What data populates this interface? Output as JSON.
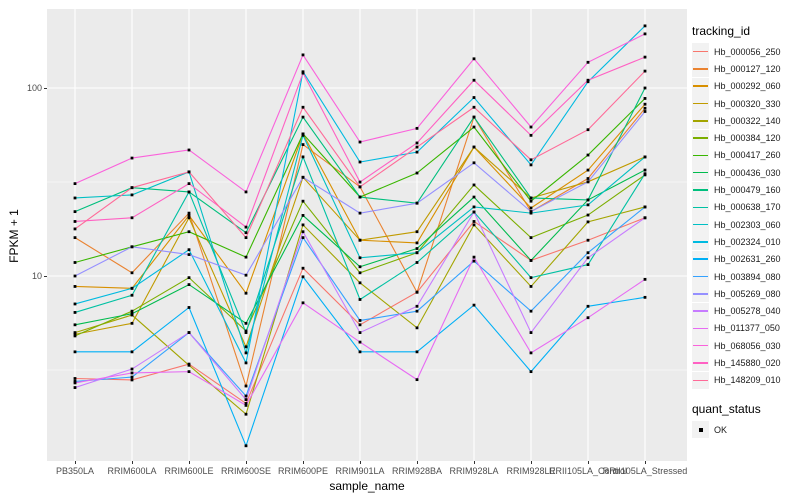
{
  "chart_data": {
    "type": "line",
    "title": "",
    "xlabel": "sample_name",
    "ylabel": "FPKM + 1",
    "y_scale": "log10",
    "y_ticks": [
      10,
      100
    ],
    "y_minor_gridlines": [
      3.1623,
      31.623
    ],
    "ylim": [
      1.04,
      263
    ],
    "grid": "on",
    "legend_position": "right",
    "marker": {
      "shape": "square",
      "color": "#000000",
      "meaning": "quant_status OK"
    },
    "categories": [
      "PB350LA",
      "RRIM600LA",
      "RRIM600LE",
      "RRIM600SE",
      "RRIM600PE",
      "RRIM901LA",
      "RRIM928BA",
      "RRIM928LA",
      "RRIM928LE",
      "RRII105LA_Control",
      "RRII105LA_Stressed"
    ],
    "series": [
      {
        "tracking_id": "Hb_000056_250",
        "color": "#F8766D",
        "values": [
          2.85,
          2.8,
          3.4,
          2.1,
          11,
          5.5,
          8.2,
          19.5,
          12.1,
          15.5,
          20.4
        ]
      },
      {
        "tracking_id": "Hb_000127_120",
        "color": "#EA8331",
        "values": [
          16,
          10.4,
          21.6,
          2.6,
          50,
          29.8,
          8.2,
          70,
          22,
          33,
          78
        ]
      },
      {
        "tracking_id": "Hb_000292_060",
        "color": "#D89000",
        "values": [
          8.8,
          8.6,
          21,
          8.1,
          57,
          15.5,
          15,
          48.5,
          23,
          36.6,
          82
        ]
      },
      {
        "tracking_id": "Hb_000320_330",
        "color": "#C09B00",
        "values": [
          4.9,
          5.6,
          20.4,
          4.2,
          33.5,
          15.5,
          17.2,
          48.5,
          26,
          31.7,
          43
        ]
      },
      {
        "tracking_id": "Hb_000322_140",
        "color": "#A3A500",
        "values": [
          5.0,
          6.2,
          3.35,
          1.84,
          18.7,
          9.2,
          5.3,
          18.7,
          8.8,
          19.4,
          23.3
        ]
      },
      {
        "tracking_id": "Hb_000384_120",
        "color": "#7CAE00",
        "values": [
          4.8,
          6.5,
          9.8,
          5.1,
          25,
          10.4,
          13.3,
          30.5,
          16,
          21.1,
          34.5
        ]
      },
      {
        "tracking_id": "Hb_000417_260",
        "color": "#39B600",
        "values": [
          11.8,
          14.3,
          17.2,
          12.6,
          57,
          26.3,
          35.3,
          62,
          25,
          44,
          88
        ]
      },
      {
        "tracking_id": "Hb_000436_030",
        "color": "#00BB4E",
        "values": [
          5.5,
          6.3,
          9.0,
          5.6,
          21,
          11.2,
          14,
          26.3,
          12.1,
          25.4,
          36.6
        ]
      },
      {
        "tracking_id": "Hb_000479_160",
        "color": "#00BF7D",
        "values": [
          22,
          29.5,
          28,
          17,
          70,
          26.3,
          24.4,
          70,
          26,
          25.4,
          100
        ]
      },
      {
        "tracking_id": "Hb_000638_170",
        "color": "#00C1A3",
        "values": [
          6.4,
          7.9,
          28,
          5.0,
          43,
          7.5,
          11.8,
          21.9,
          9.8,
          11.5,
          35
        ]
      },
      {
        "tracking_id": "Hb_002303_060",
        "color": "#00BFC4",
        "values": [
          26,
          27,
          35.8,
          3.9,
          56,
          12.5,
          13.3,
          23.3,
          21.6,
          23.9,
          43
        ]
      },
      {
        "tracking_id": "Hb_002324_010",
        "color": "#00BAE0",
        "values": [
          7.1,
          8.6,
          13.8,
          3.45,
          122,
          40.4,
          45.6,
          89,
          39,
          108,
          214
        ]
      },
      {
        "tracking_id": "Hb_002631_260",
        "color": "#00B0F6",
        "values": [
          3.95,
          3.95,
          6.8,
          1.25,
          9.9,
          3.95,
          3.95,
          7.0,
          3.1,
          6.9,
          7.7
        ]
      },
      {
        "tracking_id": "Hb_003894_080",
        "color": "#35A2FF",
        "values": [
          2.75,
          2.9,
          5.0,
          2.3,
          16,
          5.8,
          6.5,
          12,
          6.5,
          13.3,
          23.3
        ]
      },
      {
        "tracking_id": "Hb_005269_080",
        "color": "#9590FF",
        "values": [
          10,
          14.3,
          13,
          10.1,
          33.5,
          21.6,
          24.4,
          40,
          22,
          31.7,
          75
        ]
      },
      {
        "tracking_id": "Hb_005278_040",
        "color": "#C77CFF",
        "values": [
          2.55,
          3.2,
          5.0,
          2.2,
          17.2,
          5.0,
          6.9,
          21.9,
          5.0,
          12.5,
          20.4
        ]
      },
      {
        "tracking_id": "Hb_011377_050",
        "color": "#E76BF3",
        "values": [
          2.7,
          3.05,
          3.1,
          2.05,
          7.2,
          4.45,
          2.81,
          12.6,
          3.9,
          6.0,
          9.6
        ]
      },
      {
        "tracking_id": "Hb_068056_030",
        "color": "#FA62DB",
        "values": [
          31,
          42.4,
          46.8,
          28,
          150,
          51.6,
          61,
          143,
          62,
          137,
          194
        ]
      },
      {
        "tracking_id": "Hb_145880_020",
        "color": "#FF61C3",
        "values": [
          19.5,
          20.4,
          31,
          18.2,
          120,
          31.6,
          51,
          110,
          56,
          110,
          146
        ]
      },
      {
        "tracking_id": "Hb_148209_010",
        "color": "#FF6A98",
        "values": [
          17.8,
          29.5,
          35.8,
          16,
          79,
          29.8,
          48.5,
          79,
          41.5,
          60,
          123
        ]
      }
    ],
    "legend": {
      "tracking_title": "tracking_id",
      "quant_title": "quant_status",
      "quant_items": [
        "OK"
      ]
    }
  },
  "theme": {
    "panel_bg": "#EBEBEB",
    "gridline": "#FFFFFF",
    "axis_text": "#4D4D4D",
    "tick_mark": "#333333",
    "legend_key_bg": "#F2F2F2"
  }
}
